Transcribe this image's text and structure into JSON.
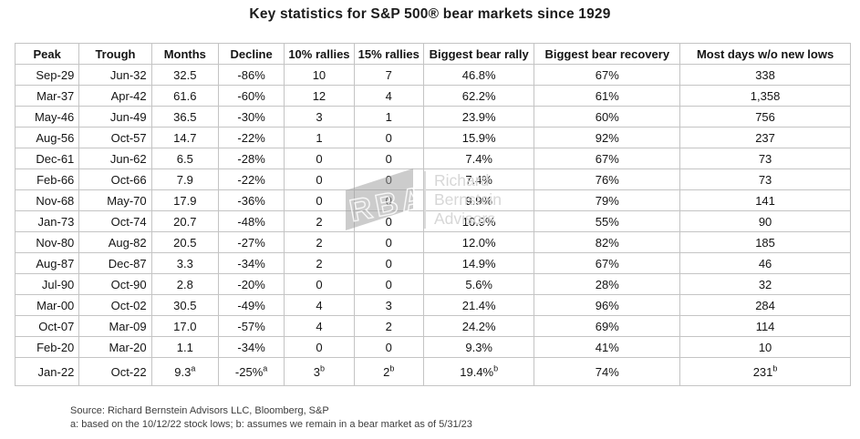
{
  "chart_data": {
    "type": "table",
    "title": "Key statistics for S&P 500® bear markets since 1929",
    "columns": [
      "Peak",
      "Trough",
      "Months",
      "Decline",
      "10% rallies",
      "15% rallies",
      "Biggest bear rally",
      "Biggest bear recovery",
      "Most days w/o new lows"
    ],
    "rows": [
      [
        "Sep-29",
        "Jun-32",
        "32.5",
        "-86%",
        "10",
        "7",
        "46.8%",
        "67%",
        "338"
      ],
      [
        "Mar-37",
        "Apr-42",
        "61.6",
        "-60%",
        "12",
        "4",
        "62.2%",
        "61%",
        "1,358"
      ],
      [
        "May-46",
        "Jun-49",
        "36.5",
        "-30%",
        "3",
        "1",
        "23.9%",
        "60%",
        "756"
      ],
      [
        "Aug-56",
        "Oct-57",
        "14.7",
        "-22%",
        "1",
        "0",
        "15.9%",
        "92%",
        "237"
      ],
      [
        "Dec-61",
        "Jun-62",
        "6.5",
        "-28%",
        "0",
        "0",
        "7.4%",
        "67%",
        "73"
      ],
      [
        "Feb-66",
        "Oct-66",
        "7.9",
        "-22%",
        "0",
        "0",
        "7.4%",
        "76%",
        "73"
      ],
      [
        "Nov-68",
        "May-70",
        "17.9",
        "-36%",
        "0",
        "0",
        "9.9%",
        "79%",
        "141"
      ],
      [
        "Jan-73",
        "Oct-74",
        "20.7",
        "-48%",
        "2",
        "0",
        "10.9%",
        "55%",
        "90"
      ],
      [
        "Nov-80",
        "Aug-82",
        "20.5",
        "-27%",
        "2",
        "0",
        "12.0%",
        "82%",
        "185"
      ],
      [
        "Aug-87",
        "Dec-87",
        "3.3",
        "-34%",
        "2",
        "0",
        "14.9%",
        "67%",
        "46"
      ],
      [
        "Jul-90",
        "Oct-90",
        "2.8",
        "-20%",
        "0",
        "0",
        "5.6%",
        "28%",
        "32"
      ],
      [
        "Mar-00",
        "Oct-02",
        "30.5",
        "-49%",
        "4",
        "3",
        "21.4%",
        "96%",
        "284"
      ],
      [
        "Oct-07",
        "Mar-09",
        "17.0",
        "-57%",
        "4",
        "2",
        "24.2%",
        "69%",
        "114"
      ],
      [
        "Feb-20",
        "Mar-20",
        "1.1",
        "-34%",
        "0",
        "0",
        "9.3%",
        "41%",
        "10"
      ],
      [
        "Jan-22",
        "Oct-22",
        "9.3^a",
        "-25%^a",
        "3^b",
        "2^b",
        "19.4%^b",
        "74%",
        "231^b"
      ]
    ],
    "superscript_marker": "^",
    "notes": "superscripts a and b reference the footnote line"
  },
  "watermark": {
    "logo_text": "RBA",
    "name_lines": [
      "Richard",
      "Bernstein",
      "Advisors"
    ],
    "gray": "#bdbdbd"
  },
  "footer": {
    "source": "Source: Richard Bernstein Advisors LLC, Bloomberg, S&P",
    "footnote": "a: based on the 10/12/22 stock lows; b: assumes we remain in a bear market as of 5/31/23"
  },
  "colors": {
    "grid": "#c4c4c4",
    "text": "#141414",
    "watermark_text": "#d7d7d7",
    "background": "#ffffff"
  }
}
